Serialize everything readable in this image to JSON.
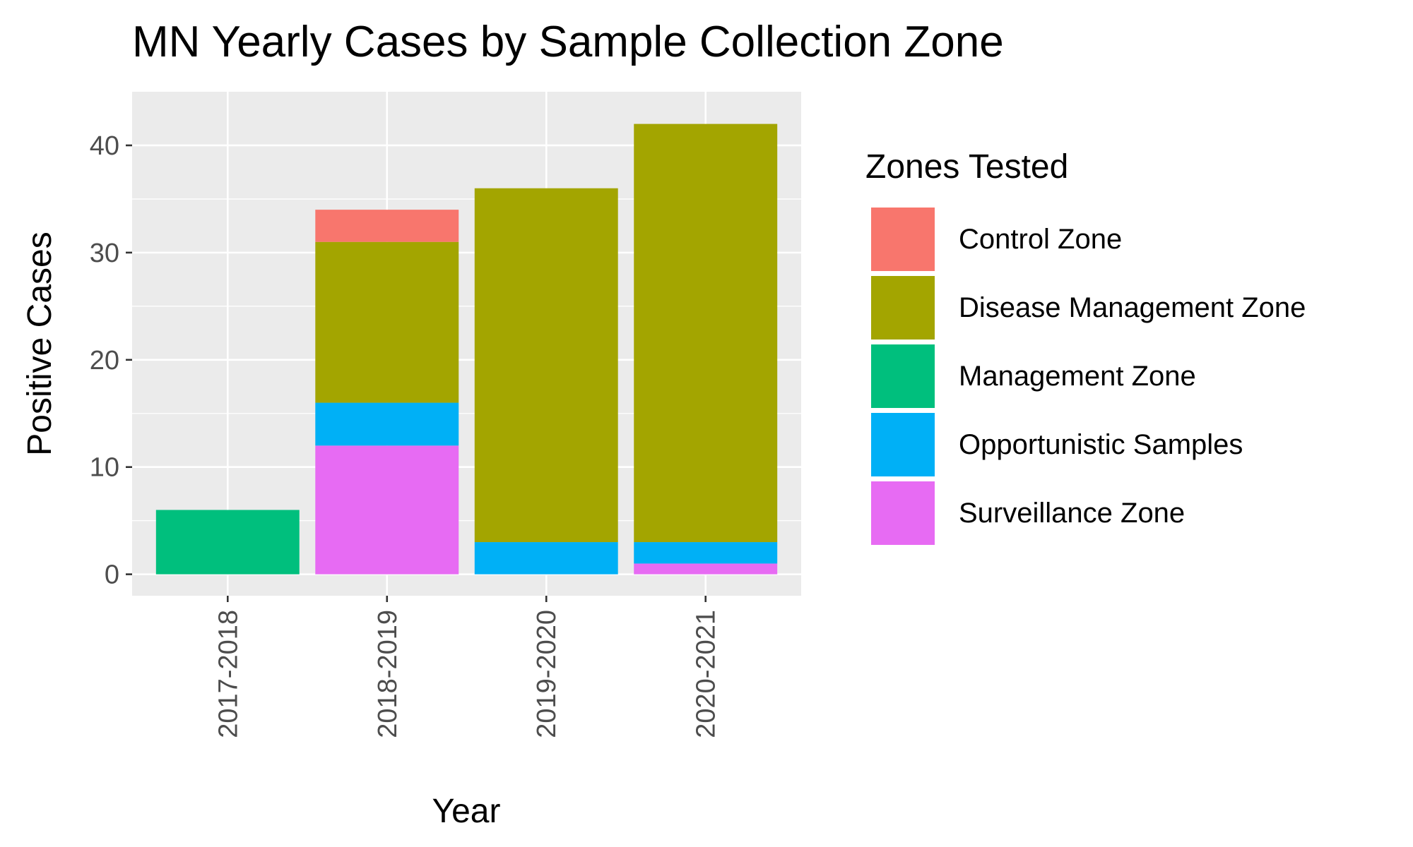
{
  "chart_data": {
    "type": "bar",
    "stacked": true,
    "title": "MN Yearly Cases by Sample Collection Zone",
    "xlabel": "Year",
    "ylabel": "Positive Cases",
    "ylim": [
      -2,
      45
    ],
    "yticks": [
      0,
      10,
      20,
      30,
      40
    ],
    "grid": true,
    "legend_position": "right",
    "legend_title": "Zones Tested",
    "categories": [
      "2017-2018",
      "2018-2019",
      "2019-2020",
      "2020-2021"
    ],
    "series": [
      {
        "name": "Control Zone",
        "color": "#F8766D",
        "values": [
          0,
          3,
          0,
          0
        ]
      },
      {
        "name": "Disease Management Zone",
        "color": "#A3A500",
        "values": [
          0,
          15,
          33,
          39
        ]
      },
      {
        "name": "Management Zone",
        "color": "#00BF7D",
        "values": [
          6,
          0,
          0,
          0
        ]
      },
      {
        "name": "Opportunistic Samples",
        "color": "#00B0F6",
        "values": [
          0,
          4,
          3,
          2
        ]
      },
      {
        "name": "Surveillance Zone",
        "color": "#E76BF3",
        "values": [
          0,
          12,
          0,
          1
        ]
      }
    ],
    "colors": {
      "panel": "#EBEBEB",
      "grid": "#FFFFFF",
      "tick_text": "#4D4D4D",
      "text": "#000000"
    }
  }
}
